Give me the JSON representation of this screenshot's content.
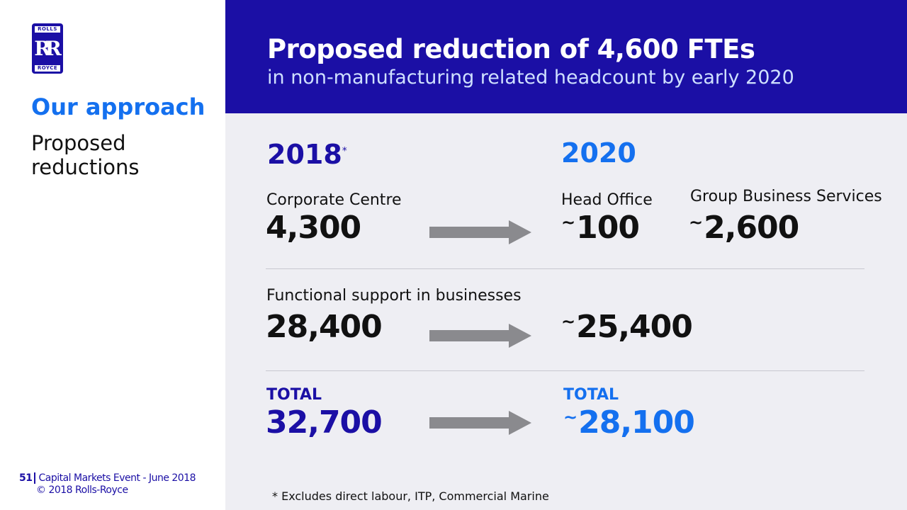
{
  "logo": {
    "top": "ROLLS",
    "mark": "RR",
    "bottom": "ROYCE"
  },
  "section": "Our approach",
  "subtitle": "Proposed reductions",
  "header": {
    "title": "Proposed reduction of 4,600 FTEs",
    "subtitle": "in non-manufacturing related headcount by early 2020"
  },
  "years": {
    "from": "2018",
    "from_mark": "*",
    "to": "2020"
  },
  "rows": [
    {
      "label": "Corporate Centre",
      "from": "4,300",
      "to": [
        {
          "label": "Head Office",
          "value": "100",
          "approx": "~"
        },
        {
          "label": "Group Business Services",
          "value": "2,600",
          "approx": "~"
        }
      ]
    },
    {
      "label": "Functional support in businesses",
      "from": "28,400",
      "to": [
        {
          "value": "25,400",
          "approx": "~"
        }
      ]
    }
  ],
  "total": {
    "label_from": "TOTAL",
    "from": "32,700",
    "label_to": "TOTAL",
    "to": "28,100",
    "approx": "~"
  },
  "footnote": "* Excludes direct labour, ITP, Commercial Marine",
  "footer": {
    "page": "51",
    "event": "Capital Markets Event - June 2018",
    "copyright": "© 2018 Rolls-Royce"
  },
  "colors": {
    "dark_blue": "#1b0fa5",
    "bright_blue": "#1470ef",
    "arrow": "#8a8a8e",
    "panel": "#eeeef3"
  }
}
